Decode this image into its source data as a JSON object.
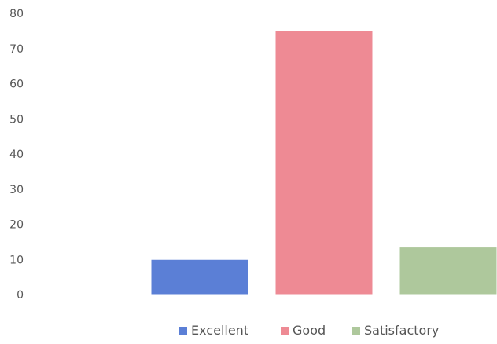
{
  "chart_data": {
    "type": "bar",
    "title": "",
    "xlabel": "",
    "ylabel": "",
    "categories": [
      "Excellent",
      "Good",
      "Satisfactory"
    ],
    "values": [
      10,
      75,
      13.5
    ],
    "ylim": [
      0,
      80
    ],
    "yticks": [
      "0",
      "10",
      "20",
      "30",
      "40",
      "50",
      "60",
      "70",
      "80"
    ],
    "colors": [
      "#5b7fd6",
      "#ee8a94",
      "#aec89c"
    ],
    "grid": false,
    "legend": {
      "position": "bottom",
      "entries": [
        "Excellent",
        "Good",
        "Satisfactory"
      ]
    }
  }
}
